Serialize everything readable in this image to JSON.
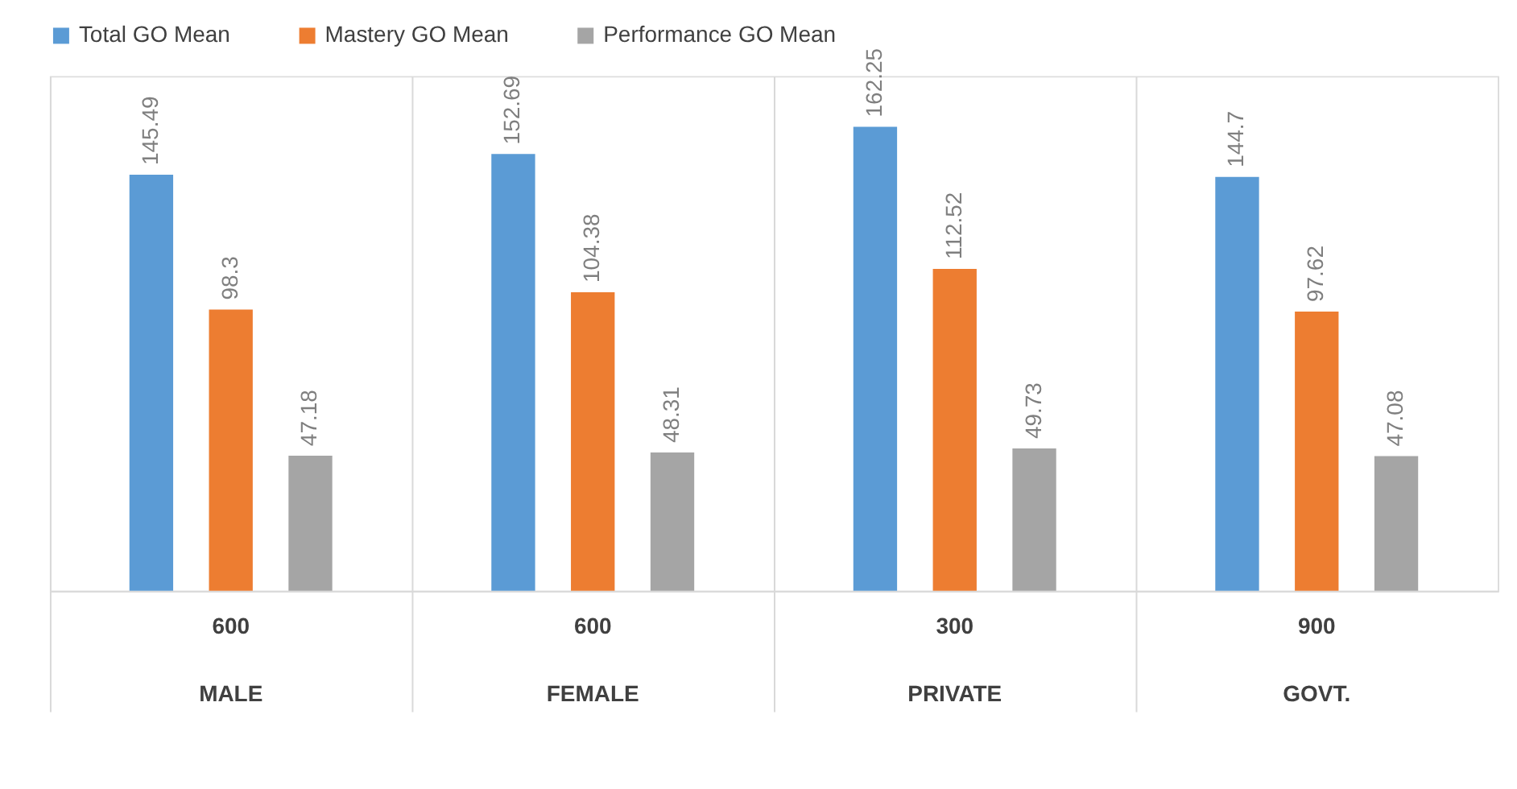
{
  "chart_data": {
    "type": "bar",
    "categories": [
      "600\nMALE",
      "600\nFEMALE",
      "300\nPRIVATE",
      "900\nGOVT."
    ],
    "series": [
      {
        "name": "Total GO Mean",
        "color": "#5b9bd5",
        "values": [
          145.49,
          152.69,
          162.25,
          144.7
        ]
      },
      {
        "name": "Mastery GO Mean",
        "color": "#ed7d31",
        "values": [
          98.3,
          104.38,
          112.52,
          97.62
        ]
      },
      {
        "name": "Performance GO Mean",
        "color": "#a5a5a5",
        "values": [
          47.18,
          48.31,
          49.73,
          47.08
        ]
      }
    ],
    "ylim": [
      0,
      180
    ],
    "data_labels": true,
    "legend": "top",
    "grid": "x",
    "tick_labels": "x"
  }
}
